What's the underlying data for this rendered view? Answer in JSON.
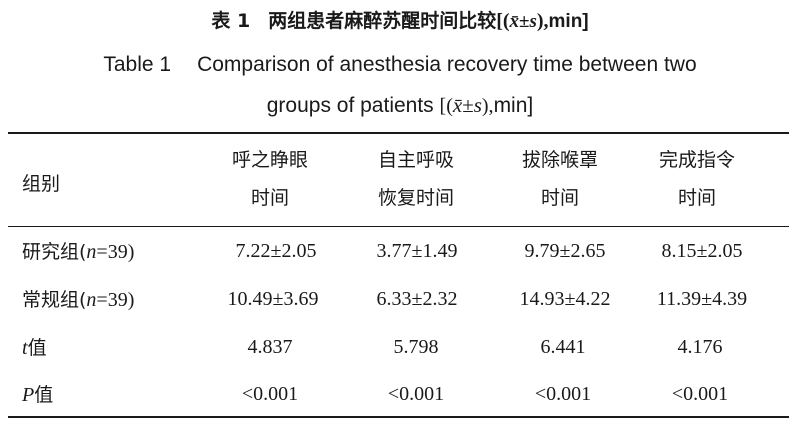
{
  "caption": {
    "cn_label": "表 1",
    "cn_title": "两组患者麻醉苏醒时间比较",
    "en_label": "Table 1",
    "en_title_line1": "Comparison of anesthesia recovery time between two",
    "en_title_line2": "groups of patients",
    "stat_symbol": "x̄±s",
    "bracket_open": "[(",
    "bracket_close": "),",
    "unit": "min]"
  },
  "table": {
    "group_header": "组别",
    "columns": [
      {
        "line1": "呼之睁眼",
        "line2": "时间"
      },
      {
        "line1": "自主呼吸",
        "line2": "恢复时间"
      },
      {
        "line1": "拔除喉罩",
        "line2": "时间"
      },
      {
        "line1": "完成指令",
        "line2": "时间"
      }
    ],
    "rows": [
      {
        "label_cn": "研究组(",
        "label_var": "n",
        "label_val": "=39)",
        "values": [
          "7.22±2.05",
          "3.77±1.49",
          "9.79±2.65",
          "8.15±2.05"
        ]
      },
      {
        "label_cn": "常规组(",
        "label_var": "n",
        "label_val": "=39)",
        "values": [
          "10.49±3.69",
          "6.33±2.32",
          "14.93±4.22",
          "11.39±4.39"
        ]
      },
      {
        "label_cn": "",
        "label_var": "t",
        "label_val": "值",
        "values": [
          "4.837",
          "5.798",
          "6.441",
          "4.176"
        ]
      },
      {
        "label_cn": "",
        "label_var": "P",
        "label_val": "值",
        "values": [
          "<0.001",
          "<0.001",
          "<0.001",
          "<0.001"
        ]
      }
    ]
  }
}
